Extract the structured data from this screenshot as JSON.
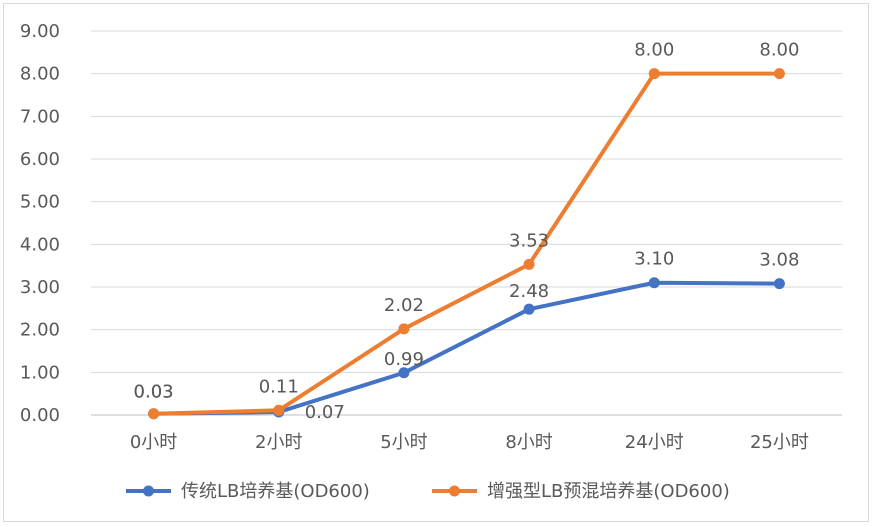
{
  "chart_data": {
    "type": "line",
    "categories": [
      "0小时",
      "2小时",
      "5小时",
      "8小时",
      "24小时",
      "25小时"
    ],
    "y_ticks": [
      "0.00",
      "1.00",
      "2.00",
      "3.00",
      "4.00",
      "5.00",
      "6.00",
      "7.00",
      "8.00",
      "9.00"
    ],
    "ylim": [
      0,
      9
    ],
    "grid": true,
    "legend_position": "bottom",
    "series": [
      {
        "name": "传统LB培养基(OD600)",
        "values": [
          0.03,
          0.07,
          0.99,
          2.48,
          3.1,
          3.08
        ],
        "labels": [
          "0.03",
          "0.07",
          "0.99",
          "2.48",
          "3.10",
          "3.08"
        ],
        "color": "#4472C4"
      },
      {
        "name": "增强型LB预混培养基(OD600)",
        "values": [
          0.03,
          0.11,
          2.02,
          3.53,
          8.0,
          8.0
        ],
        "labels": [
          "0.03",
          "0.11",
          "2.02",
          "3.53",
          "8.00",
          "8.00"
        ],
        "color": "#ED7D31"
      }
    ]
  }
}
